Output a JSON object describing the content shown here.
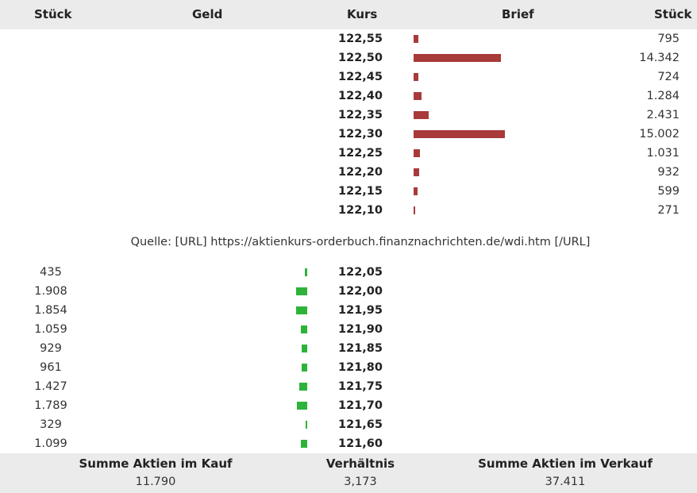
{
  "header": {
    "col_bid_qty": "Stück",
    "col_bid": "Geld",
    "col_price": "Kurs",
    "col_ask": "Brief",
    "col_ask_qty": "Stück"
  },
  "colors": {
    "ask_bar": "#a83a3a",
    "bid_bar": "#2db33a",
    "band_bg": "#ebebeb"
  },
  "ask_max_qty": 15002,
  "bid_max_qty": 1908,
  "asks": [
    {
      "price": "122,55",
      "qty": "795",
      "qty_num": 795
    },
    {
      "price": "122,50",
      "qty": "14.342",
      "qty_num": 14342
    },
    {
      "price": "122,45",
      "qty": "724",
      "qty_num": 724
    },
    {
      "price": "122,40",
      "qty": "1.284",
      "qty_num": 1284
    },
    {
      "price": "122,35",
      "qty": "2.431",
      "qty_num": 2431
    },
    {
      "price": "122,30",
      "qty": "15.002",
      "qty_num": 15002
    },
    {
      "price": "122,25",
      "qty": "1.031",
      "qty_num": 1031
    },
    {
      "price": "122,20",
      "qty": "932",
      "qty_num": 932
    },
    {
      "price": "122,15",
      "qty": "599",
      "qty_num": 599
    },
    {
      "price": "122,10",
      "qty": "271",
      "qty_num": 271
    }
  ],
  "source_text": "Quelle: [URL] https://aktienkurs-orderbuch.finanznachrichten.de/wdi.htm [/URL]",
  "bids": [
    {
      "price": "122,05",
      "qty": "435",
      "qty_num": 435
    },
    {
      "price": "122,00",
      "qty": "1.908",
      "qty_num": 1908
    },
    {
      "price": "121,95",
      "qty": "1.854",
      "qty_num": 1854
    },
    {
      "price": "121,90",
      "qty": "1.059",
      "qty_num": 1059
    },
    {
      "price": "121,85",
      "qty": "929",
      "qty_num": 929
    },
    {
      "price": "121,80",
      "qty": "961",
      "qty_num": 961
    },
    {
      "price": "121,75",
      "qty": "1.427",
      "qty_num": 1427
    },
    {
      "price": "121,70",
      "qty": "1.789",
      "qty_num": 1789
    },
    {
      "price": "121,65",
      "qty": "329",
      "qty_num": 329
    },
    {
      "price": "121,60",
      "qty": "1.099",
      "qty_num": 1099
    }
  ],
  "footer": {
    "sum_buy_label": "Summe Aktien im Kauf",
    "sum_buy_value": "11.790",
    "ratio_label": "Verhältnis",
    "ratio_value": "3,173",
    "sum_sell_label": "Summe Aktien im Verkauf",
    "sum_sell_value": "37.411"
  }
}
